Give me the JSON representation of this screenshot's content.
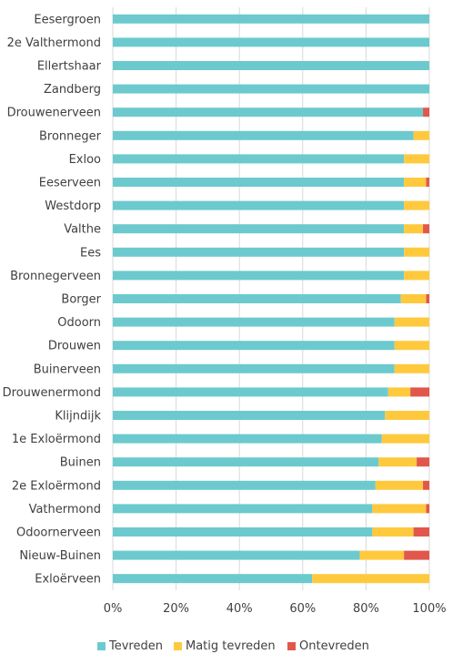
{
  "chart_data": {
    "type": "bar",
    "orientation": "horizontal",
    "stacked": "percent",
    "title": "",
    "xlabel": "",
    "ylabel": "",
    "xlim": [
      0,
      100
    ],
    "x_ticks": [
      "0%",
      "20%",
      "40%",
      "60%",
      "80%",
      "100%"
    ],
    "grid": true,
    "legend_position": "bottom",
    "categories": [
      "Eesergroen",
      "2e Valthermond",
      "Ellertshaar",
      "Zandberg",
      "Drouwenerveen",
      "Bronneger",
      "Exloo",
      "Eeserveen",
      "Westdorp",
      "Valthe",
      "Ees",
      "Bronnegerveen",
      "Borger",
      "Odoorn",
      "Drouwen",
      "Buinerveen",
      "Drouwenermond",
      "Klijndijk",
      "1e Exloërmond",
      "Buinen",
      "2e Exloërmond",
      "Vathermond",
      "Odoornerveen",
      "Nieuw-Buinen",
      "Exloërveen"
    ],
    "series": [
      {
        "name": "Tevreden",
        "color": "#6CCACE",
        "values": [
          100,
          100,
          100,
          100,
          98,
          95,
          92,
          92,
          92,
          92,
          92,
          92,
          91,
          89,
          89,
          89,
          87,
          86,
          85,
          84,
          83,
          82,
          82,
          78,
          63
        ]
      },
      {
        "name": "Matig tevreden",
        "color": "#FFC93E",
        "values": [
          0,
          0,
          0,
          0,
          0,
          5,
          8,
          7,
          8,
          6,
          8,
          8,
          8,
          11,
          11,
          11,
          7,
          14,
          15,
          12,
          15,
          17,
          13,
          14,
          37
        ]
      },
      {
        "name": "Ontevreden",
        "color": "#E2574C",
        "values": [
          0,
          0,
          0,
          0,
          2,
          0,
          0,
          1,
          0,
          2,
          0,
          0,
          1,
          0,
          0,
          0,
          6,
          0,
          0,
          4,
          2,
          1,
          5,
          8,
          0
        ]
      }
    ]
  }
}
